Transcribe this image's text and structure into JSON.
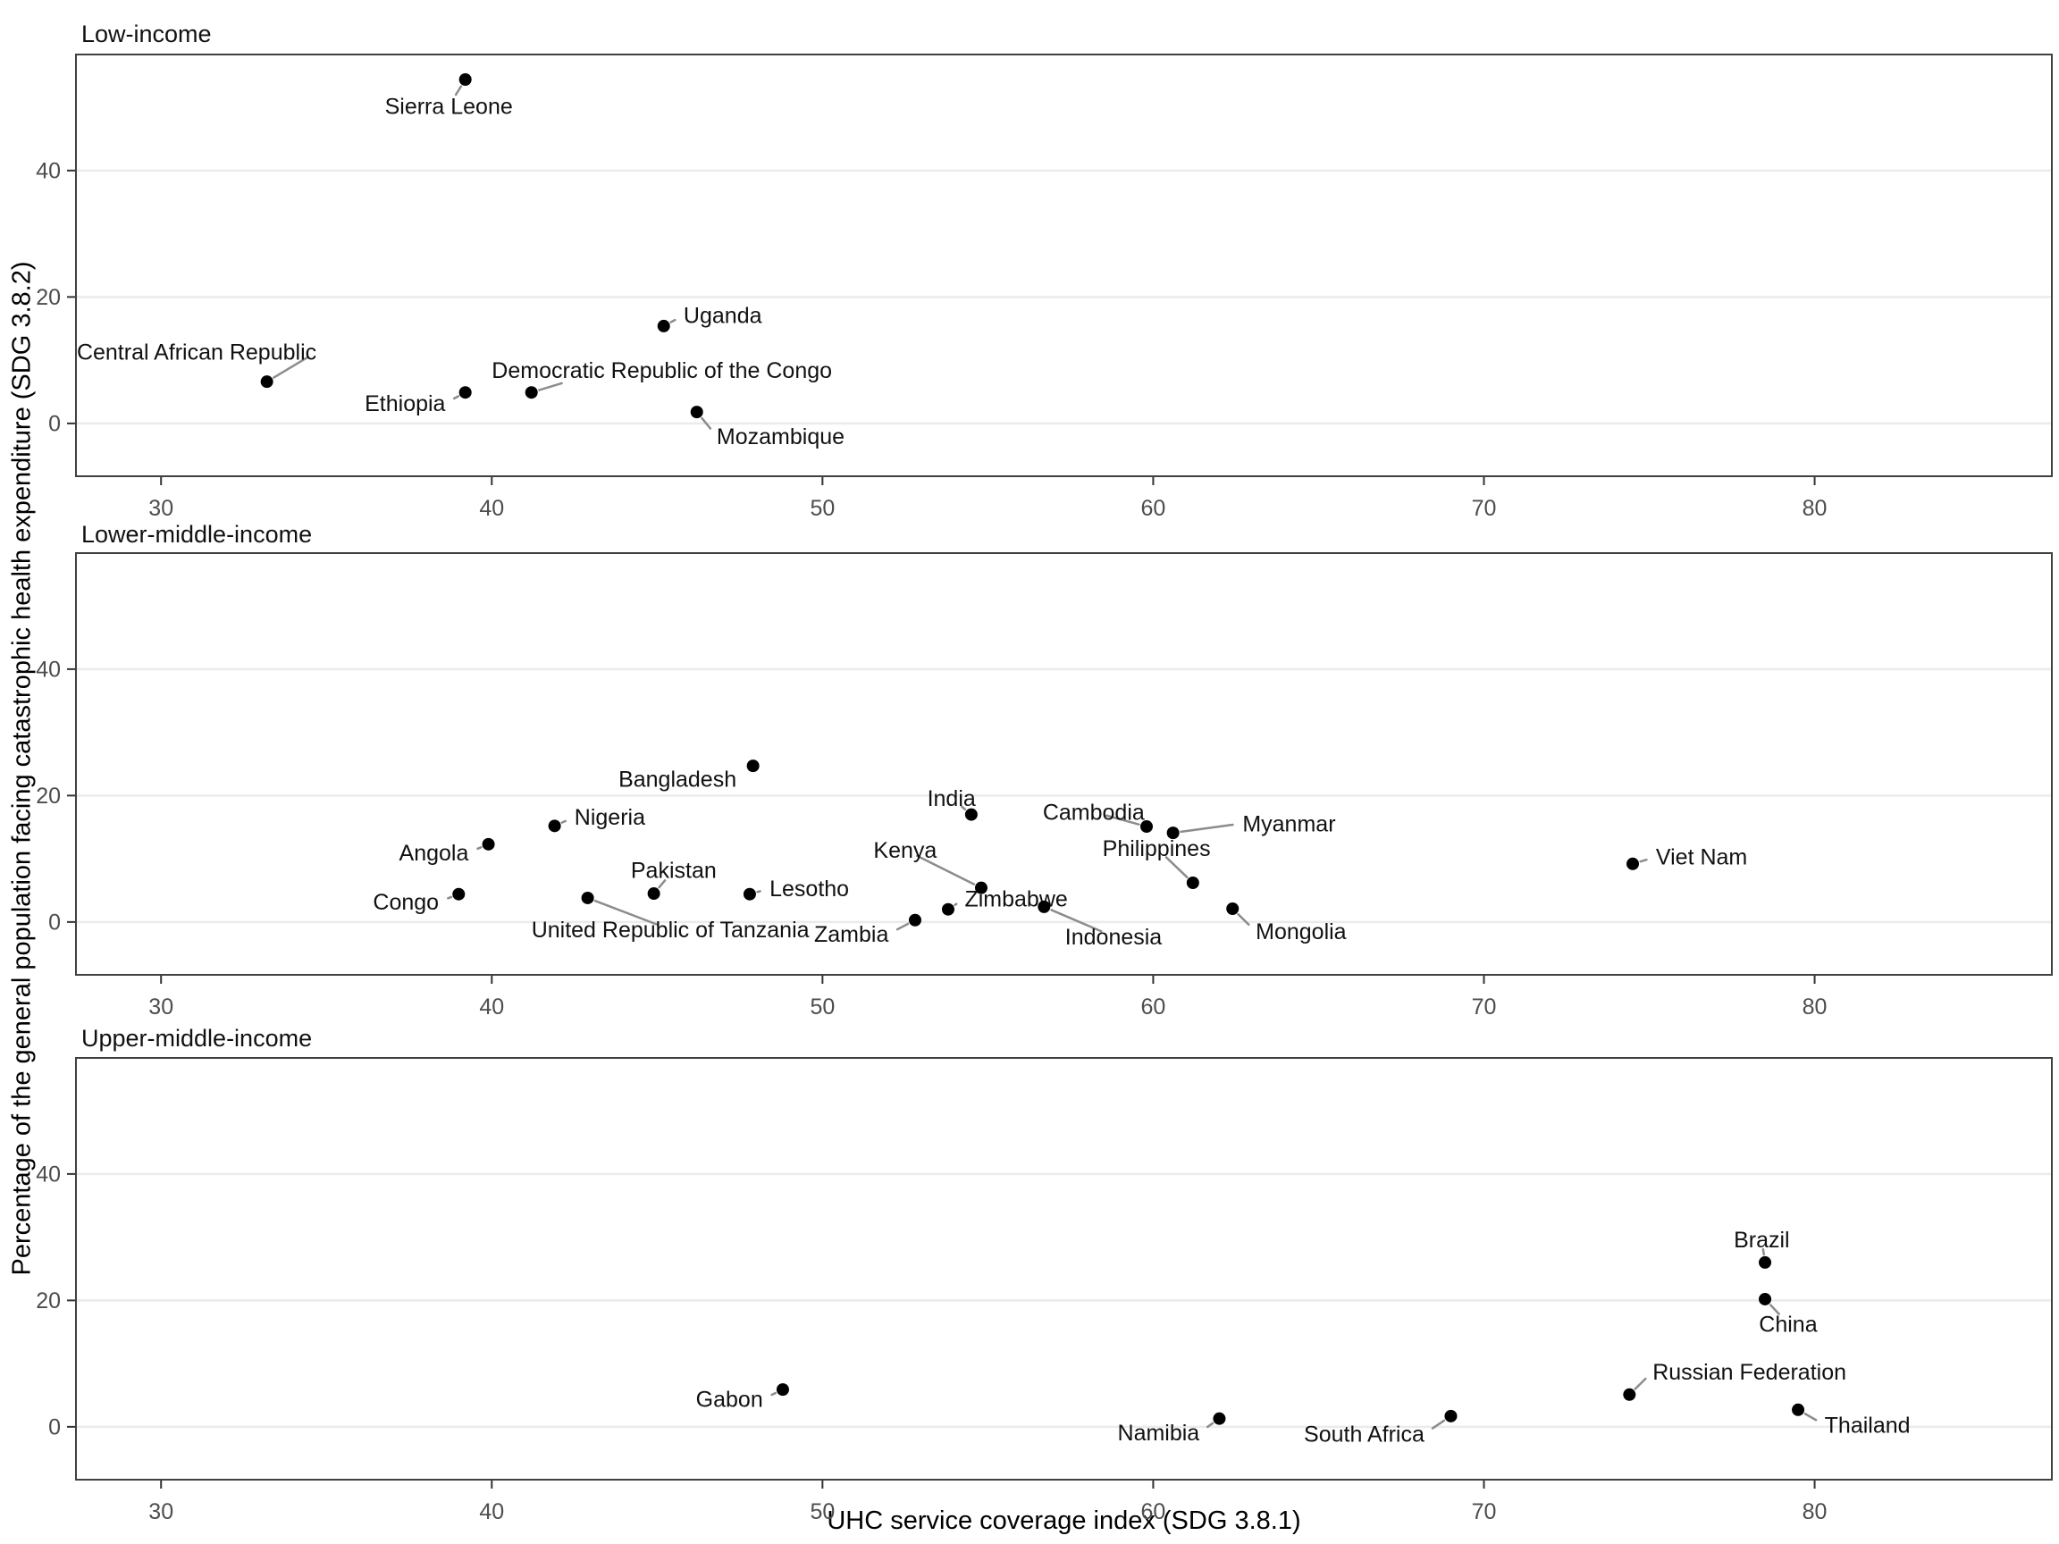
{
  "figure": {
    "x_axis": {
      "title": "UHC service coverage index (SDG 3.8.1)",
      "ticks": [
        30,
        40,
        50,
        60,
        70,
        80
      ],
      "domain": [
        27.4,
        87.2
      ]
    },
    "y_axis": {
      "title": "Percentage of the general population facing catastrophic health expenditure (SDG 3.8.2)",
      "ticks": [
        0,
        20,
        40
      ],
      "domain": [
        -8.5,
        58.5
      ]
    },
    "colors": {
      "background": "#ffffff",
      "point": "#000000",
      "label_text": "#111111",
      "leader_line": "#8c8c8c",
      "gridline": "#ebebeb",
      "panel_border": "#404040",
      "tick_mark": "#333333",
      "tick_label": "#4d4d4d"
    },
    "grid": "horizontal-major-only",
    "legend": "none"
  },
  "chart_data": [
    {
      "type": "scatter",
      "facet": "Low-income",
      "points": [
        {
          "label": "Sierra Leone",
          "x": 39.2,
          "y": 54.4,
          "lx": 38.7,
          "ly": 50.2,
          "anchor": "middle",
          "leader": true
        },
        {
          "label": "Central African Republic",
          "x": 33.2,
          "y": 6.6,
          "lx": 34.7,
          "ly": 11.3,
          "anchor": "end",
          "leader": true
        },
        {
          "label": "Ethiopia",
          "x": 39.2,
          "y": 4.9,
          "lx": 38.6,
          "ly": 3.2,
          "anchor": "end",
          "leader": true
        },
        {
          "label": "Democratic Republic of the Congo",
          "x": 41.2,
          "y": 4.9,
          "lx": 40.0,
          "ly": 8.4,
          "anchor": "start",
          "leader": true,
          "tx": 42.4,
          "ty": 6.8
        },
        {
          "label": "Uganda",
          "x": 45.2,
          "y": 15.4,
          "lx": 45.8,
          "ly": 17.1,
          "anchor": "start",
          "leader": true
        },
        {
          "label": "Mozambique",
          "x": 46.2,
          "y": 1.8,
          "lx": 46.8,
          "ly": -2.0,
          "anchor": "start",
          "leader": true
        }
      ]
    },
    {
      "type": "scatter",
      "facet": "Lower-middle-income",
      "points": [
        {
          "label": "Bangladesh",
          "x": 47.9,
          "y": 24.7,
          "lx": 47.4,
          "ly": 22.6,
          "anchor": "end",
          "leader": false
        },
        {
          "label": "Nigeria",
          "x": 41.9,
          "y": 15.2,
          "lx": 42.5,
          "ly": 16.6,
          "anchor": "start",
          "leader": true
        },
        {
          "label": "Angola",
          "x": 39.9,
          "y": 12.3,
          "lx": 39.3,
          "ly": 11.0,
          "anchor": "end",
          "leader": true
        },
        {
          "label": "Congo",
          "x": 39.0,
          "y": 4.4,
          "lx": 38.4,
          "ly": 3.2,
          "anchor": "end",
          "leader": true
        },
        {
          "label": "United Republic of Tanzania",
          "x": 42.9,
          "y": 3.8,
          "lx": 45.4,
          "ly": -1.2,
          "anchor": "middle",
          "leader": true
        },
        {
          "label": "Pakistan",
          "x": 44.9,
          "y": 4.5,
          "lx": 45.5,
          "ly": 8.2,
          "anchor": "middle",
          "leader": true
        },
        {
          "label": "Lesotho",
          "x": 47.8,
          "y": 4.4,
          "lx": 48.4,
          "ly": 5.3,
          "anchor": "start",
          "leader": true
        },
        {
          "label": "Zambia",
          "x": 52.8,
          "y": 0.3,
          "lx": 52.0,
          "ly": -1.9,
          "anchor": "end",
          "leader": true
        },
        {
          "label": "Zimbabwe",
          "x": 53.8,
          "y": 2.0,
          "lx": 54.3,
          "ly": 3.7,
          "anchor": "start",
          "leader": true
        },
        {
          "label": "Kenya",
          "x": 54.8,
          "y": 5.4,
          "lx": 52.5,
          "ly": 11.4,
          "anchor": "middle",
          "leader": true
        },
        {
          "label": "India",
          "x": 54.5,
          "y": 17.0,
          "lx": 53.9,
          "ly": 19.6,
          "anchor": "middle",
          "leader": true
        },
        {
          "label": "Indonesia",
          "x": 56.7,
          "y": 2.4,
          "lx": 58.8,
          "ly": -2.3,
          "anchor": "middle",
          "leader": true
        },
        {
          "label": "Cambodia",
          "x": 59.8,
          "y": 15.1,
          "lx": 58.2,
          "ly": 17.4,
          "anchor": "middle",
          "leader": true
        },
        {
          "label": "Myanmar",
          "x": 60.6,
          "y": 14.1,
          "lx": 62.7,
          "ly": 15.6,
          "anchor": "start",
          "leader": true
        },
        {
          "label": "Philippines",
          "x": 61.2,
          "y": 6.2,
          "lx": 60.1,
          "ly": 11.7,
          "anchor": "middle",
          "leader": true
        },
        {
          "label": "Mongolia",
          "x": 62.4,
          "y": 2.1,
          "lx": 63.1,
          "ly": -1.5,
          "anchor": "start",
          "leader": true
        },
        {
          "label": "Viet Nam",
          "x": 74.5,
          "y": 9.2,
          "lx": 75.2,
          "ly": 10.3,
          "anchor": "start",
          "leader": true
        }
      ]
    },
    {
      "type": "scatter",
      "facet": "Upper-middle-income",
      "points": [
        {
          "label": "Gabon",
          "x": 48.8,
          "y": 5.9,
          "lx": 48.2,
          "ly": 4.4,
          "anchor": "end",
          "leader": true
        },
        {
          "label": "Namibia",
          "x": 62.0,
          "y": 1.3,
          "lx": 61.4,
          "ly": -0.9,
          "anchor": "end",
          "leader": true
        },
        {
          "label": "South Africa",
          "x": 69.0,
          "y": 1.7,
          "lx": 68.2,
          "ly": -1.1,
          "anchor": "end",
          "leader": true
        },
        {
          "label": "Russian Federation",
          "x": 74.4,
          "y": 5.1,
          "lx": 75.1,
          "ly": 8.7,
          "anchor": "start",
          "leader": true
        },
        {
          "label": "Brazil",
          "x": 78.5,
          "y": 26.0,
          "lx": 78.4,
          "ly": 29.6,
          "anchor": "middle",
          "leader": true
        },
        {
          "label": "China",
          "x": 78.5,
          "y": 20.2,
          "lx": 79.2,
          "ly": 16.3,
          "anchor": "middle",
          "leader": true
        },
        {
          "label": "Thailand",
          "x": 79.5,
          "y": 2.7,
          "lx": 80.3,
          "ly": 0.3,
          "anchor": "start",
          "leader": true
        }
      ]
    }
  ]
}
